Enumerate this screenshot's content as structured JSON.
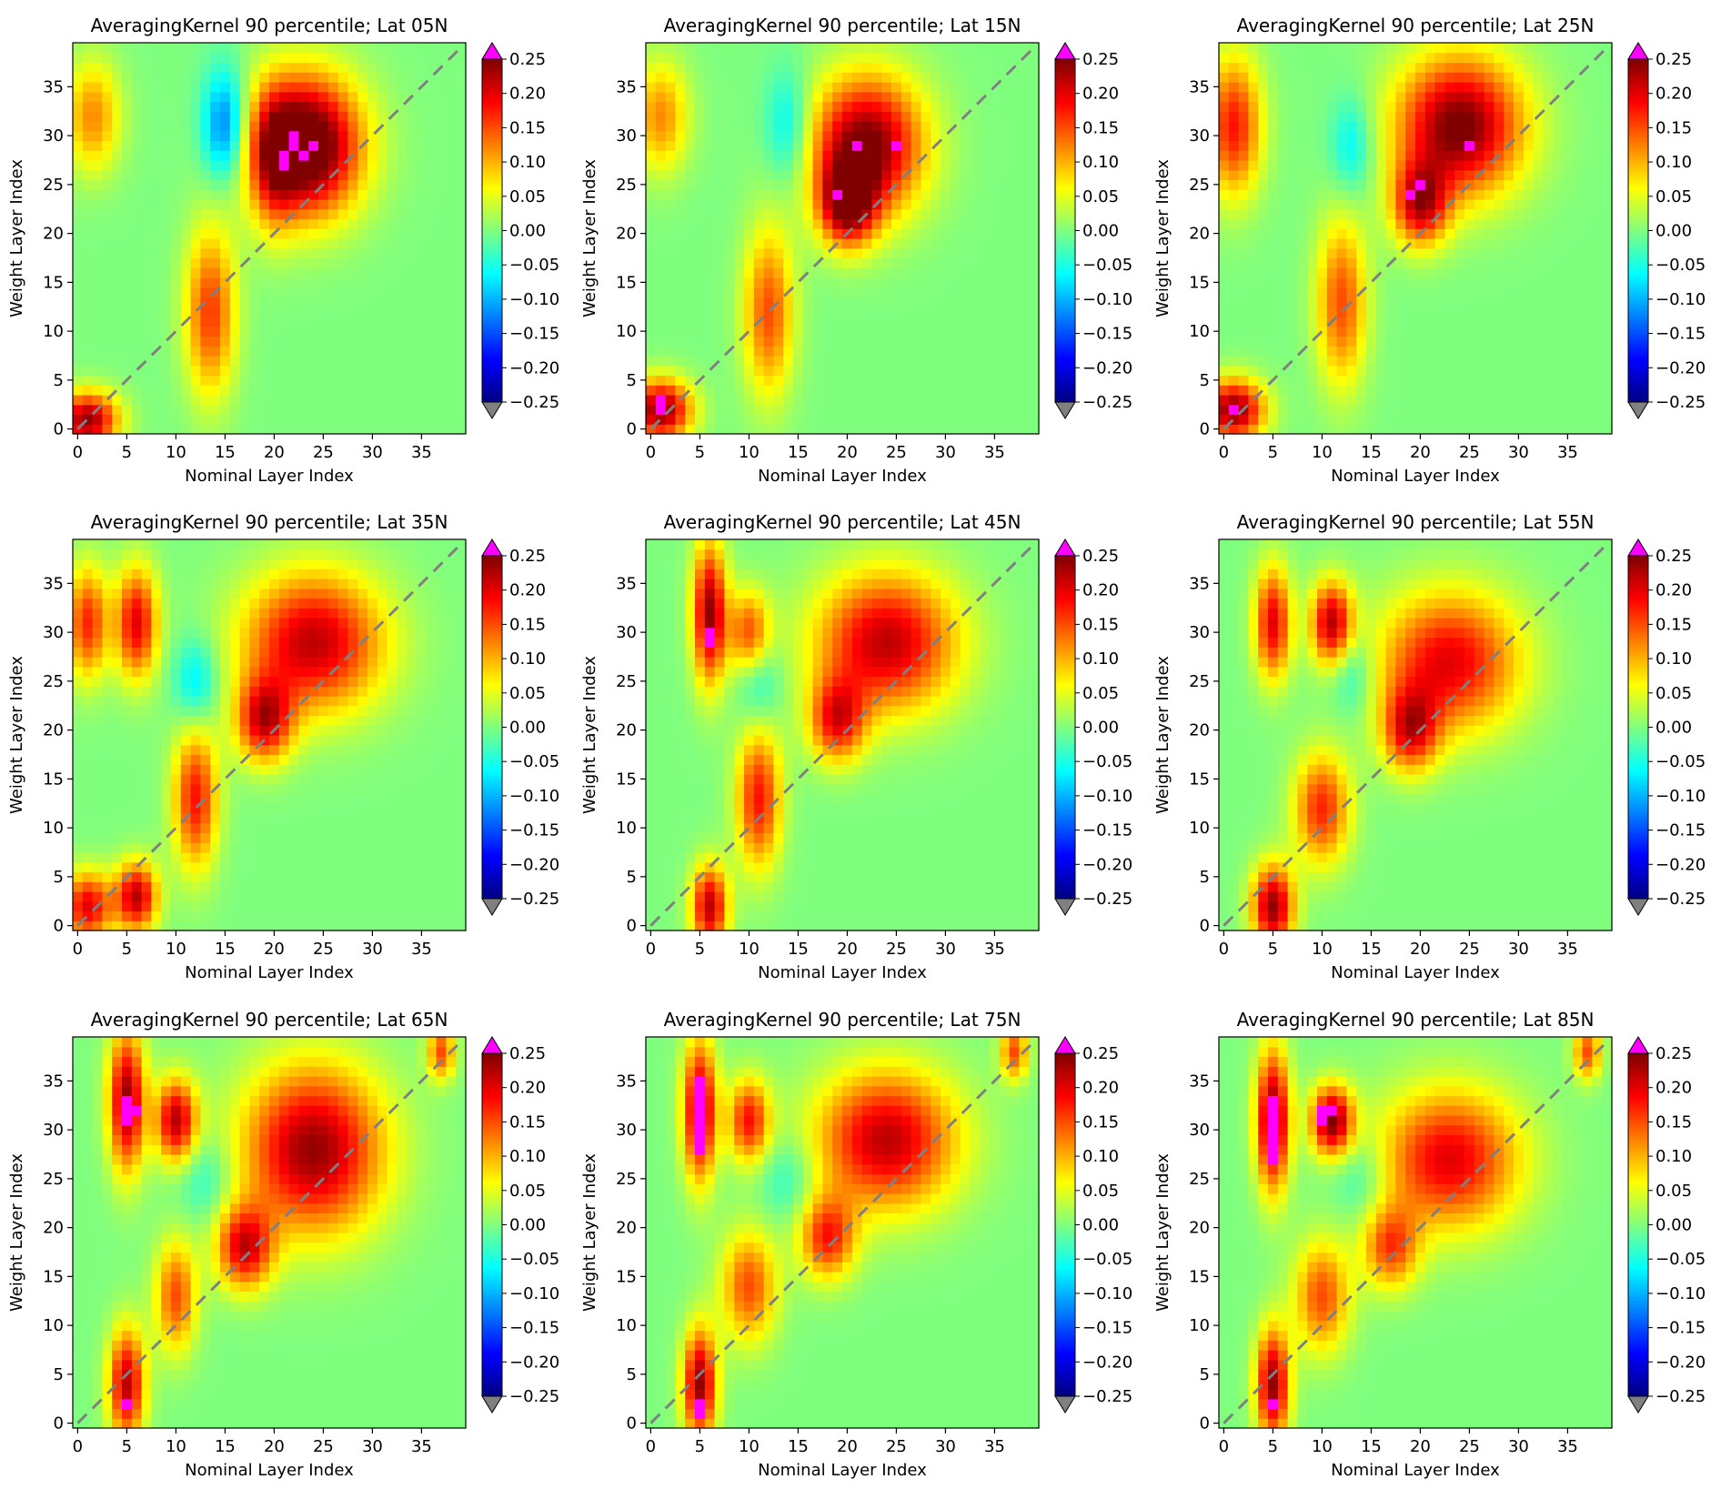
{
  "figure": {
    "colorbar": {
      "ticks": [
        "0.25",
        "0.20",
        "0.15",
        "0.10",
        "0.05",
        "0.00",
        "−0.05",
        "−0.10",
        "−0.15",
        "−0.20",
        "−0.25"
      ],
      "vmin": -0.25,
      "vmax": 0.25,
      "over_color": "#ff00ff",
      "under_color": "#808080"
    },
    "colors": {
      "diagonal": "#808080",
      "saturated": "#ff00ff"
    }
  },
  "chart_data": [
    {
      "type": "heatmap",
      "title": "AveragingKernel 90 percentile; Lat 05N",
      "xlabel": "Nominal Layer Index",
      "ylabel": "Weight Layer Index",
      "x_ticks": [
        0,
        5,
        10,
        15,
        20,
        25,
        30,
        35
      ],
      "y_ticks": [
        0,
        5,
        10,
        15,
        20,
        25,
        30,
        35
      ],
      "xlim": [
        -0.5,
        39.5
      ],
      "ylim": [
        -0.5,
        39.5
      ],
      "grid": false,
      "reference_line": "y = x (gray dashed)",
      "blobs": [
        {
          "x": 1,
          "y": 1,
          "sx": 2.2,
          "sy": 2,
          "v": 0.24
        },
        {
          "x": 13.5,
          "y": 12,
          "sx": 1.8,
          "sy": 6,
          "v": 0.16
        },
        {
          "x": 1.5,
          "y": 32,
          "sx": 2,
          "sy": 4,
          "v": 0.12
        },
        {
          "x": 15,
          "y": 31,
          "sx": 1.6,
          "sy": 4,
          "v": -0.15
        },
        {
          "x": 23,
          "y": 29,
          "sx": 4,
          "sy": 5,
          "v": 0.32
        },
        {
          "x": 20,
          "y": 27,
          "sx": 1.5,
          "sy": 5,
          "v": 0.08
        }
      ],
      "saturated": [
        {
          "x": 22,
          "y": 29
        },
        {
          "x": 21,
          "y": 28
        },
        {
          "x": 23,
          "y": 28
        },
        {
          "x": 21,
          "y": 27
        },
        {
          "x": 22,
          "y": 30
        },
        {
          "x": 24,
          "y": 29
        }
      ]
    },
    {
      "type": "heatmap",
      "title": "AveragingKernel 90 percentile; Lat 15N",
      "xlabel": "Nominal Layer Index",
      "ylabel": "Weight Layer Index",
      "x_ticks": [
        0,
        5,
        10,
        15,
        20,
        25,
        30,
        35
      ],
      "y_ticks": [
        0,
        5,
        10,
        15,
        20,
        25,
        30,
        35
      ],
      "xlim": [
        -0.5,
        39.5
      ],
      "ylim": [
        -0.5,
        39.5
      ],
      "grid": false,
      "reference_line": "y = x (gray dashed)",
      "blobs": [
        {
          "x": 1,
          "y": 2,
          "sx": 2.2,
          "sy": 2.2,
          "v": 0.25
        },
        {
          "x": 12,
          "y": 12,
          "sx": 1.8,
          "sy": 6,
          "v": 0.15
        },
        {
          "x": 1,
          "y": 32,
          "sx": 2,
          "sy": 4,
          "v": 0.12
        },
        {
          "x": 14,
          "y": 31,
          "sx": 1.6,
          "sy": 4,
          "v": -0.08
        },
        {
          "x": 22,
          "y": 29,
          "sx": 4,
          "sy": 5,
          "v": 0.26
        },
        {
          "x": 20,
          "y": 23,
          "sx": 2,
          "sy": 3,
          "v": 0.22
        }
      ],
      "saturated": [
        {
          "x": 1,
          "y": 2
        },
        {
          "x": 1,
          "y": 3
        },
        {
          "x": 19,
          "y": 24
        },
        {
          "x": 21,
          "y": 29
        },
        {
          "x": 25,
          "y": 29
        }
      ]
    },
    {
      "type": "heatmap",
      "title": "AveragingKernel 90 percentile; Lat 25N",
      "xlabel": "Nominal Layer Index",
      "ylabel": "Weight Layer Index",
      "x_ticks": [
        0,
        5,
        10,
        15,
        20,
        25,
        30,
        35
      ],
      "y_ticks": [
        0,
        5,
        10,
        15,
        20,
        25,
        30,
        35
      ],
      "xlim": [
        -0.5,
        39.5
      ],
      "ylim": [
        -0.5,
        39.5
      ],
      "grid": false,
      "reference_line": "y = x (gray dashed)",
      "blobs": [
        {
          "x": 1,
          "y": 2,
          "sx": 2.2,
          "sy": 2.2,
          "v": 0.25
        },
        {
          "x": 12,
          "y": 13,
          "sx": 1.8,
          "sy": 6,
          "v": 0.15
        },
        {
          "x": 1,
          "y": 31,
          "sx": 2,
          "sy": 5,
          "v": 0.18
        },
        {
          "x": 13,
          "y": 29,
          "sx": 1.5,
          "sy": 3.5,
          "v": -0.07
        },
        {
          "x": 24,
          "y": 31,
          "sx": 4.5,
          "sy": 5,
          "v": 0.26
        },
        {
          "x": 20,
          "y": 23,
          "sx": 2,
          "sy": 3,
          "v": 0.2
        }
      ],
      "saturated": [
        {
          "x": 1,
          "y": 2
        },
        {
          "x": 19,
          "y": 24
        },
        {
          "x": 20,
          "y": 25
        },
        {
          "x": 25,
          "y": 29
        }
      ]
    },
    {
      "type": "heatmap",
      "title": "AveragingKernel 90 percentile; Lat 35N",
      "xlabel": "Nominal Layer Index",
      "ylabel": "Weight Layer Index",
      "x_ticks": [
        0,
        5,
        10,
        15,
        20,
        25,
        30,
        35
      ],
      "y_ticks": [
        0,
        5,
        10,
        15,
        20,
        25,
        30,
        35
      ],
      "xlim": [
        -0.5,
        39.5
      ],
      "ylim": [
        -0.5,
        39.5
      ],
      "grid": false,
      "reference_line": "y = x (gray dashed)",
      "blobs": [
        {
          "x": 1,
          "y": 2,
          "sx": 1.8,
          "sy": 2.5,
          "v": 0.2
        },
        {
          "x": 6,
          "y": 3,
          "sx": 1.5,
          "sy": 2.5,
          "v": 0.22
        },
        {
          "x": 12,
          "y": 13,
          "sx": 1.6,
          "sy": 5,
          "v": 0.18
        },
        {
          "x": 1,
          "y": 31,
          "sx": 1.5,
          "sy": 4,
          "v": 0.17
        },
        {
          "x": 6,
          "y": 31,
          "sx": 1.5,
          "sy": 4,
          "v": 0.2
        },
        {
          "x": 12,
          "y": 25,
          "sx": 1.5,
          "sy": 3,
          "v": -0.08
        },
        {
          "x": 24,
          "y": 29,
          "sx": 5,
          "sy": 5,
          "v": 0.22
        },
        {
          "x": 19,
          "y": 21,
          "sx": 2,
          "sy": 3,
          "v": 0.2
        }
      ],
      "saturated": []
    },
    {
      "type": "heatmap",
      "title": "AveragingKernel 90 percentile; Lat 45N",
      "xlabel": "Nominal Layer Index",
      "ylabel": "Weight Layer Index",
      "x_ticks": [
        0,
        5,
        10,
        15,
        20,
        25,
        30,
        35
      ],
      "y_ticks": [
        0,
        5,
        10,
        15,
        20,
        25,
        30,
        35
      ],
      "xlim": [
        -0.5,
        39.5
      ],
      "ylim": [
        -0.5,
        39.5
      ],
      "grid": false,
      "reference_line": "y = x (gray dashed)",
      "blobs": [
        {
          "x": 6,
          "y": 2,
          "sx": 1.3,
          "sy": 3,
          "v": 0.22
        },
        {
          "x": 11,
          "y": 13,
          "sx": 1.6,
          "sy": 5,
          "v": 0.18
        },
        {
          "x": 6,
          "y": 32,
          "sx": 1.2,
          "sy": 5,
          "v": 0.24
        },
        {
          "x": 10,
          "y": 30,
          "sx": 1.5,
          "sy": 3,
          "v": 0.15
        },
        {
          "x": 11,
          "y": 25,
          "sx": 1.5,
          "sy": 3,
          "v": -0.06
        },
        {
          "x": 24,
          "y": 29,
          "sx": 5,
          "sy": 5,
          "v": 0.22
        },
        {
          "x": 19,
          "y": 21,
          "sx": 2,
          "sy": 3,
          "v": 0.18
        }
      ],
      "saturated": [
        {
          "x": 6,
          "y": 30
        },
        {
          "x": 6,
          "y": 29
        }
      ]
    },
    {
      "type": "heatmap",
      "title": "AveragingKernel 90 percentile; Lat 55N",
      "xlabel": "Nominal Layer Index",
      "ylabel": "Weight Layer Index",
      "x_ticks": [
        0,
        5,
        10,
        15,
        20,
        25,
        30,
        35
      ],
      "y_ticks": [
        0,
        5,
        10,
        15,
        20,
        25,
        30,
        35
      ],
      "xlim": [
        -0.5,
        39.5
      ],
      "ylim": [
        -0.5,
        39.5
      ],
      "grid": false,
      "reference_line": "y = x (gray dashed)",
      "blobs": [
        {
          "x": 5,
          "y": 2,
          "sx": 1.5,
          "sy": 3,
          "v": 0.24
        },
        {
          "x": 10,
          "y": 12,
          "sx": 2,
          "sy": 4,
          "v": 0.17
        },
        {
          "x": 5,
          "y": 31,
          "sx": 1.3,
          "sy": 4,
          "v": 0.2
        },
        {
          "x": 11,
          "y": 31,
          "sx": 1.5,
          "sy": 3,
          "v": 0.22
        },
        {
          "x": 13,
          "y": 26,
          "sx": 1.5,
          "sy": 3,
          "v": -0.06
        },
        {
          "x": 23,
          "y": 27,
          "sx": 5,
          "sy": 5,
          "v": 0.2
        },
        {
          "x": 19,
          "y": 20,
          "sx": 2,
          "sy": 3,
          "v": 0.18
        }
      ],
      "saturated": []
    },
    {
      "type": "heatmap",
      "title": "AveragingKernel 90 percentile; Lat 65N",
      "xlabel": "Nominal Layer Index",
      "ylabel": "Weight Layer Index",
      "x_ticks": [
        0,
        5,
        10,
        15,
        20,
        25,
        30,
        35
      ],
      "y_ticks": [
        0,
        5,
        10,
        15,
        20,
        25,
        30,
        35
      ],
      "xlim": [
        -0.5,
        39.5
      ],
      "ylim": [
        -0.5,
        39.5
      ],
      "grid": false,
      "reference_line": "y = x (gray dashed)",
      "blobs": [
        {
          "x": 5,
          "y": 4,
          "sx": 1.3,
          "sy": 4,
          "v": 0.22
        },
        {
          "x": 10,
          "y": 13,
          "sx": 1.5,
          "sy": 4,
          "v": 0.15
        },
        {
          "x": 5,
          "y": 33,
          "sx": 1.3,
          "sy": 5,
          "v": 0.24
        },
        {
          "x": 10,
          "y": 31,
          "sx": 1.5,
          "sy": 3,
          "v": 0.22
        },
        {
          "x": 13,
          "y": 25,
          "sx": 2,
          "sy": 3,
          "v": -0.05
        },
        {
          "x": 24,
          "y": 28,
          "sx": 5,
          "sy": 6,
          "v": 0.24
        },
        {
          "x": 17,
          "y": 18,
          "sx": 2,
          "sy": 3,
          "v": 0.2
        },
        {
          "x": 37,
          "y": 38,
          "sx": 1,
          "sy": 2,
          "v": 0.15
        }
      ],
      "saturated": [
        {
          "x": 5,
          "y": 2
        },
        {
          "x": 5,
          "y": 33
        },
        {
          "x": 5,
          "y": 32
        },
        {
          "x": 6,
          "y": 32
        },
        {
          "x": 5,
          "y": 31
        }
      ]
    },
    {
      "type": "heatmap",
      "title": "AveragingKernel 90 percentile; Lat 75N",
      "xlabel": "Nominal Layer Index",
      "ylabel": "Weight Layer Index",
      "x_ticks": [
        0,
        5,
        10,
        15,
        20,
        25,
        30,
        35
      ],
      "y_ticks": [
        0,
        5,
        10,
        15,
        20,
        25,
        30,
        35
      ],
      "xlim": [
        -0.5,
        39.5
      ],
      "ylim": [
        -0.5,
        39.5
      ],
      "grid": false,
      "reference_line": "y = x (gray dashed)",
      "blobs": [
        {
          "x": 5,
          "y": 4,
          "sx": 1.2,
          "sy": 4,
          "v": 0.24
        },
        {
          "x": 10,
          "y": 14,
          "sx": 2,
          "sy": 4,
          "v": 0.15
        },
        {
          "x": 5,
          "y": 32,
          "sx": 1.2,
          "sy": 5,
          "v": 0.24
        },
        {
          "x": 10,
          "y": 31,
          "sx": 1.5,
          "sy": 3,
          "v": 0.18
        },
        {
          "x": 14,
          "y": 25,
          "sx": 2,
          "sy": 3,
          "v": -0.05
        },
        {
          "x": 24,
          "y": 29,
          "sx": 5,
          "sy": 5,
          "v": 0.22
        },
        {
          "x": 18,
          "y": 19,
          "sx": 2,
          "sy": 3,
          "v": 0.17
        },
        {
          "x": 37,
          "y": 38,
          "sx": 1,
          "sy": 2,
          "v": 0.15
        }
      ],
      "saturated": [
        {
          "x": 5,
          "y": 1
        },
        {
          "x": 5,
          "y": 2
        },
        {
          "x": 5,
          "y": 28
        },
        {
          "x": 5,
          "y": 29
        },
        {
          "x": 5,
          "y": 30
        },
        {
          "x": 5,
          "y": 31
        },
        {
          "x": 5,
          "y": 32
        },
        {
          "x": 5,
          "y": 33
        },
        {
          "x": 5,
          "y": 34
        },
        {
          "x": 5,
          "y": 35
        }
      ]
    },
    {
      "type": "heatmap",
      "title": "AveragingKernel 90 percentile; Lat 85N",
      "xlabel": "Nominal Layer Index",
      "ylabel": "Weight Layer Index",
      "x_ticks": [
        0,
        5,
        10,
        15,
        20,
        25,
        30,
        35
      ],
      "y_ticks": [
        0,
        5,
        10,
        15,
        20,
        25,
        30,
        35
      ],
      "xlim": [
        -0.5,
        39.5
      ],
      "ylim": [
        -0.5,
        39.5
      ],
      "grid": false,
      "reference_line": "y = x (gray dashed)",
      "blobs": [
        {
          "x": 5,
          "y": 4,
          "sx": 1.2,
          "sy": 4,
          "v": 0.24
        },
        {
          "x": 10,
          "y": 13,
          "sx": 2,
          "sy": 4,
          "v": 0.15
        },
        {
          "x": 5,
          "y": 31,
          "sx": 1.2,
          "sy": 5,
          "v": 0.26
        },
        {
          "x": 11,
          "y": 31,
          "sx": 1.5,
          "sy": 2.5,
          "v": 0.25
        },
        {
          "x": 14,
          "y": 25,
          "sx": 2,
          "sy": 3,
          "v": -0.05
        },
        {
          "x": 23,
          "y": 27,
          "sx": 5,
          "sy": 5,
          "v": 0.2
        },
        {
          "x": 17,
          "y": 18,
          "sx": 2,
          "sy": 3,
          "v": 0.15
        },
        {
          "x": 37,
          "y": 38,
          "sx": 1,
          "sy": 2,
          "v": 0.15
        }
      ],
      "saturated": [
        {
          "x": 5,
          "y": 2
        },
        {
          "x": 5,
          "y": 27
        },
        {
          "x": 5,
          "y": 28
        },
        {
          "x": 5,
          "y": 29
        },
        {
          "x": 5,
          "y": 30
        },
        {
          "x": 5,
          "y": 31
        },
        {
          "x": 5,
          "y": 32
        },
        {
          "x": 5,
          "y": 33
        },
        {
          "x": 10,
          "y": 31
        },
        {
          "x": 11,
          "y": 32
        },
        {
          "x": 10,
          "y": 32
        }
      ]
    }
  ]
}
